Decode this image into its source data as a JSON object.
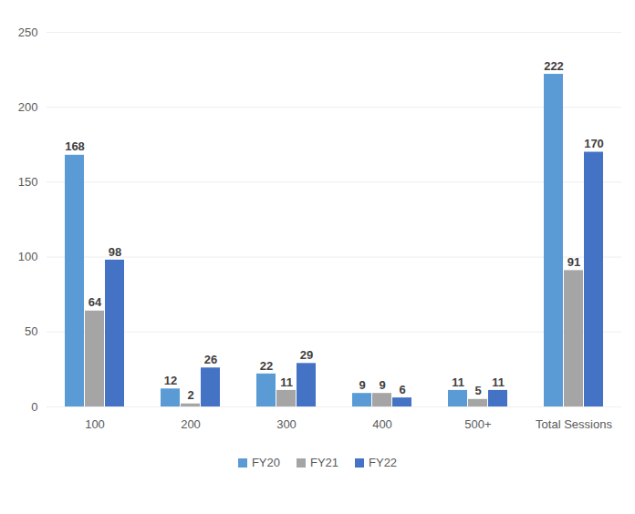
{
  "chart_data": {
    "type": "bar",
    "categories": [
      "100",
      "200",
      "300",
      "400",
      "500+",
      "Total Sessions"
    ],
    "series": [
      {
        "name": "FY20",
        "color": "#5b9bd5",
        "values": [
          168,
          12,
          22,
          9,
          11,
          222
        ]
      },
      {
        "name": "FY21",
        "color": "#a5a5a5",
        "values": [
          64,
          2,
          11,
          9,
          5,
          91
        ]
      },
      {
        "name": "FY22",
        "color": "#4472c4",
        "values": [
          98,
          26,
          29,
          6,
          11,
          170
        ]
      }
    ],
    "ylim": [
      0,
      250
    ],
    "yticks": [
      0,
      50,
      100,
      150,
      200,
      250
    ],
    "grid": true,
    "data_labels": true,
    "legend": "bottom"
  }
}
